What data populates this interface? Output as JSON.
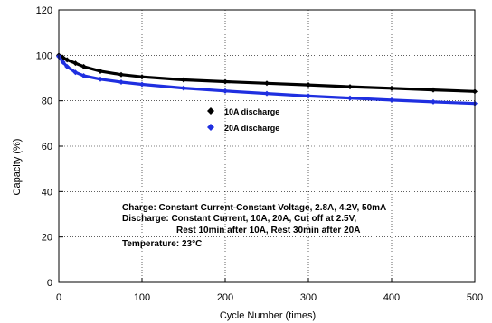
{
  "chart_data": {
    "type": "line",
    "title": "",
    "xlabel": "Cycle Number (times)",
    "ylabel": "Capacity (%)",
    "xlim": [
      0,
      500
    ],
    "ylim": [
      0,
      120
    ],
    "xticks": [
      0,
      100,
      200,
      300,
      400,
      500
    ],
    "yticks": [
      0,
      20,
      40,
      60,
      80,
      100,
      120
    ],
    "grid": "dotted",
    "legend_position": "center",
    "series": [
      {
        "name": "10A discharge",
        "color": "#000000",
        "marker": "diamond",
        "x": [
          0,
          5,
          10,
          20,
          30,
          50,
          75,
          100,
          150,
          200,
          250,
          300,
          350,
          400,
          450,
          500
        ],
        "y": [
          100,
          99,
          98,
          96.5,
          95,
          93,
          91.5,
          90.5,
          89.2,
          88.4,
          87.7,
          87,
          86.2,
          85.5,
          84.8,
          84.1
        ]
      },
      {
        "name": "20A discharge",
        "color": "#1f2fe0",
        "marker": "diamond",
        "x": [
          0,
          5,
          10,
          20,
          30,
          50,
          75,
          100,
          150,
          200,
          250,
          300,
          350,
          400,
          450,
          500
        ],
        "y": [
          99.5,
          97,
          95,
          92.5,
          91,
          89.5,
          88.2,
          87.2,
          85.6,
          84.3,
          83.2,
          82.1,
          81.2,
          80.3,
          79.5,
          78.8
        ]
      }
    ],
    "annotations": [
      "Charge: Constant Current-Constant Voltage, 2.8A, 4.2V, 50mA",
      "Discharge: Constant Current, 10A, 20A, Cut off at 2.5V,",
      "Rest 10min after 10A, Rest 30min after 20A",
      "Temperature: 23°C"
    ]
  }
}
